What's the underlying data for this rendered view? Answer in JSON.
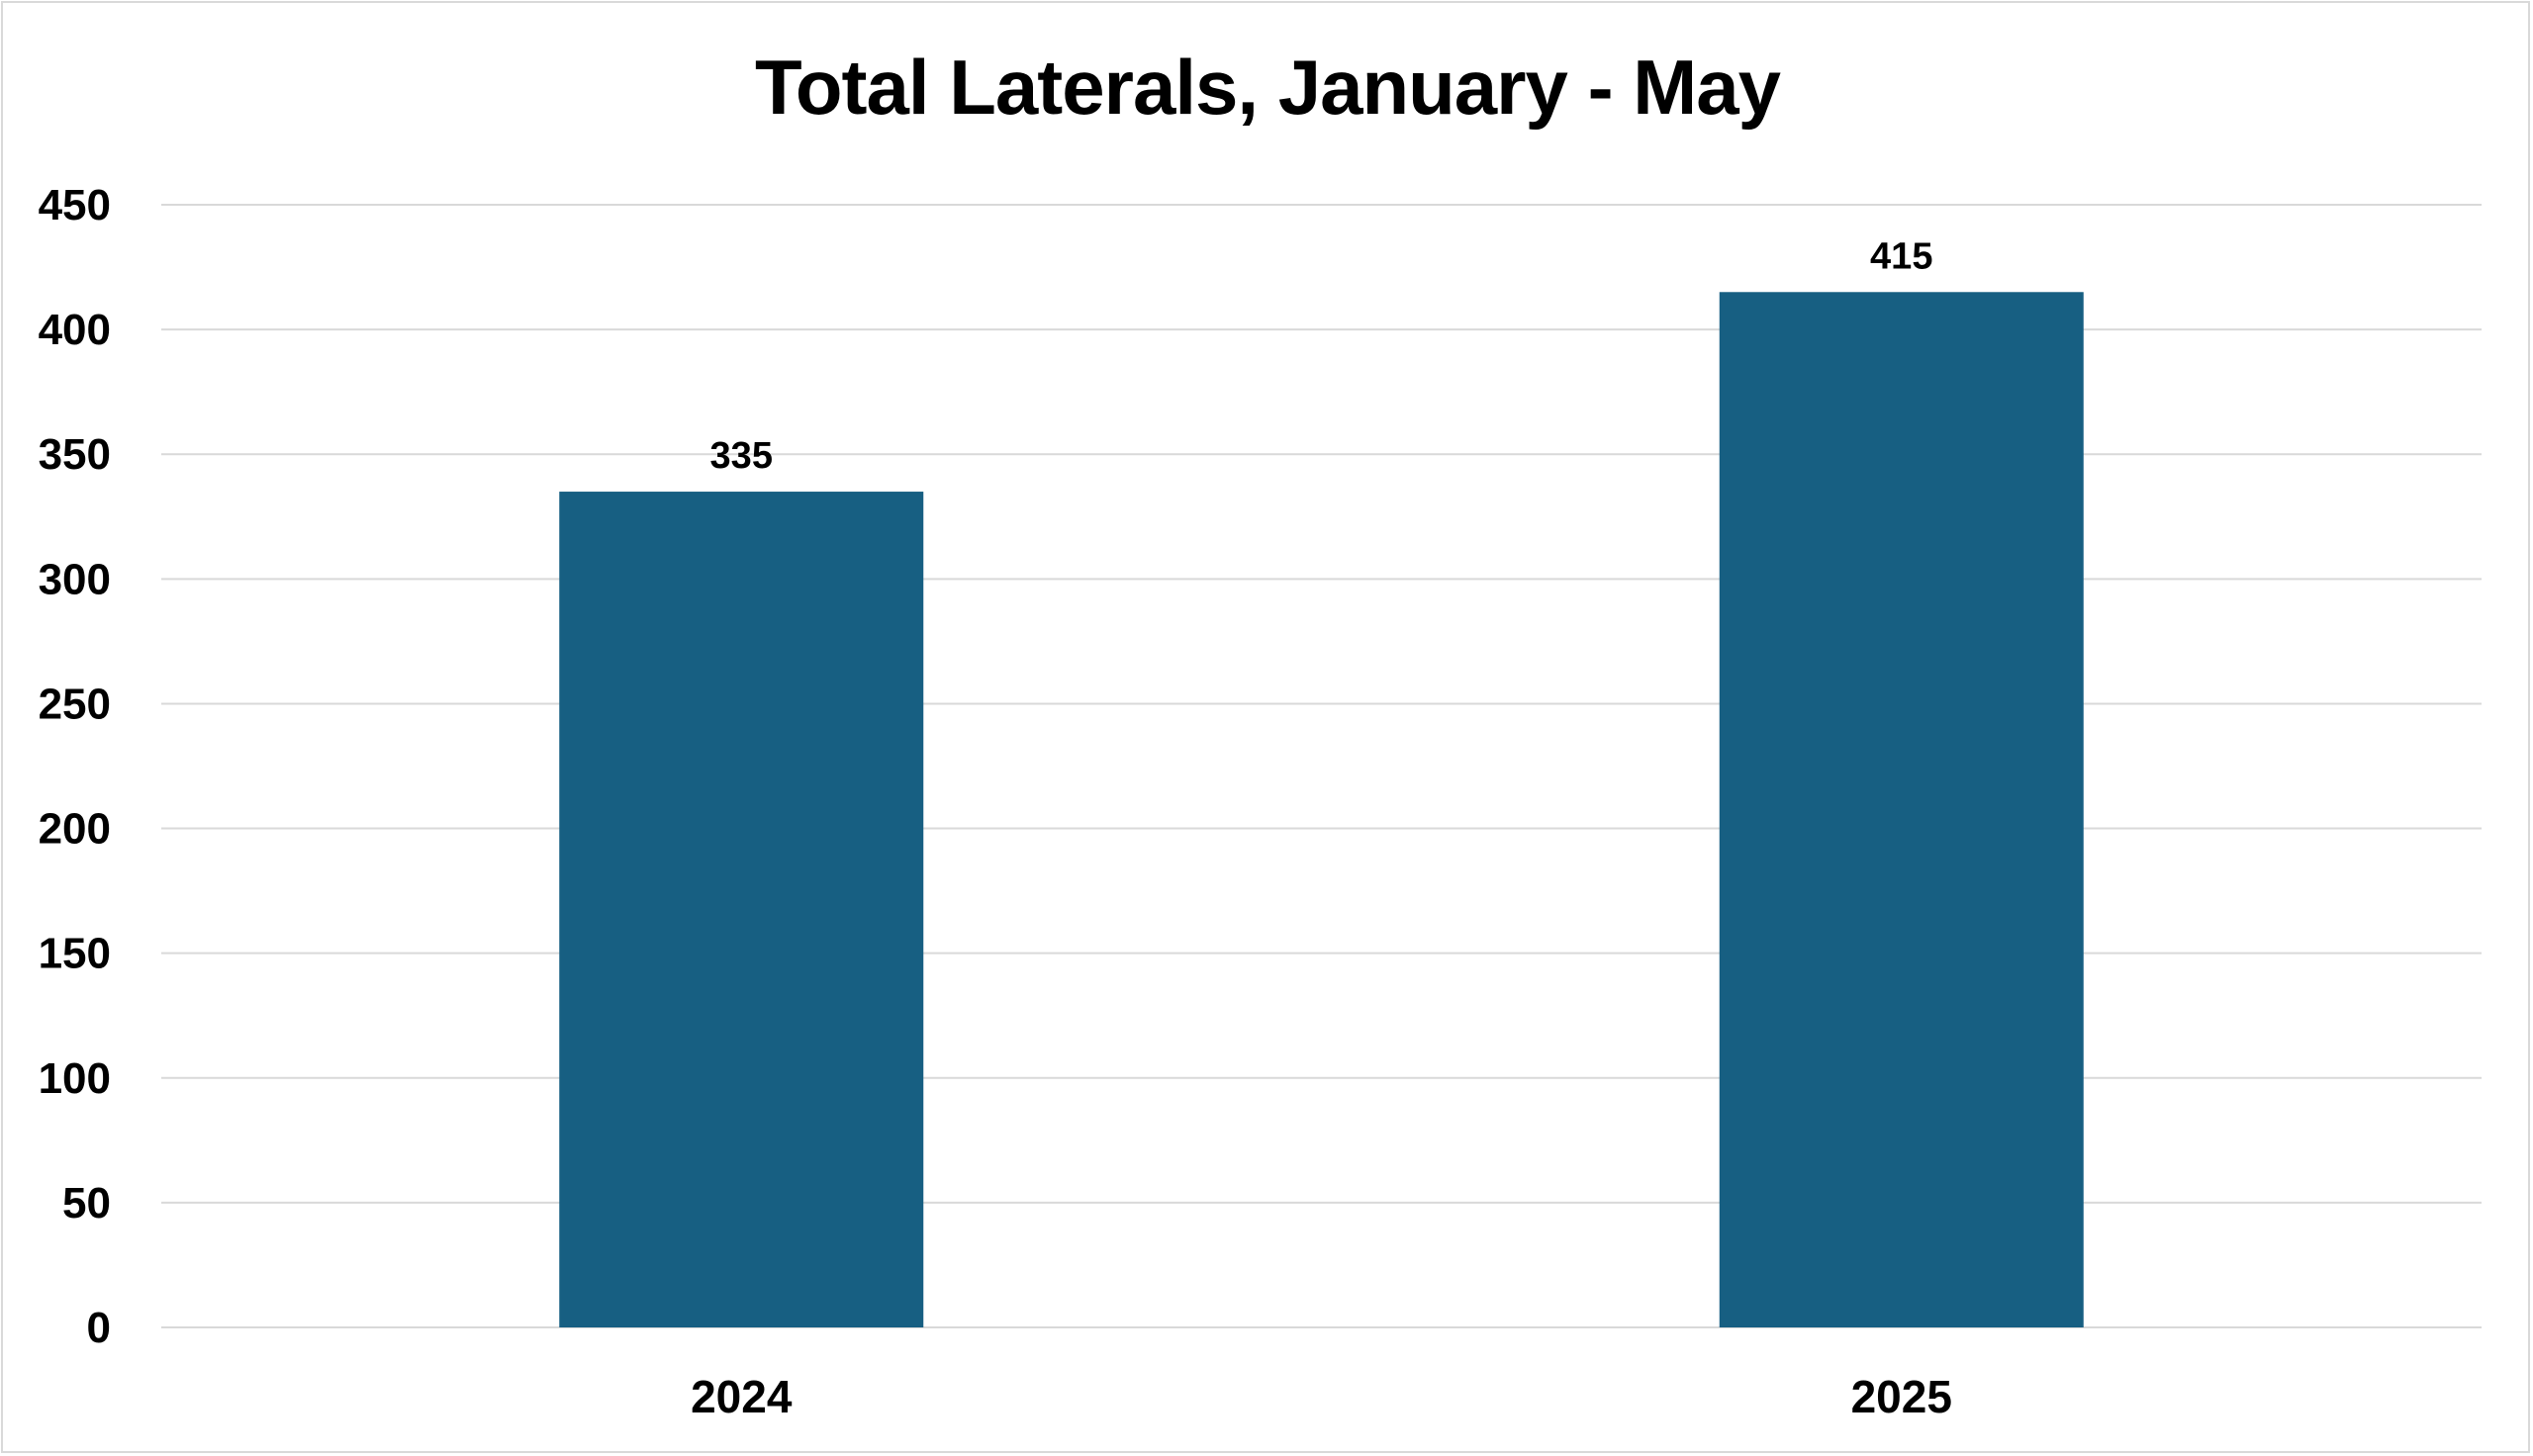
{
  "chart_data": {
    "type": "bar",
    "title": "Total Laterals, January - May",
    "categories": [
      "2024",
      "2025"
    ],
    "values": [
      335,
      415
    ],
    "xlabel": "",
    "ylabel": "",
    "ylim": [
      0,
      450
    ],
    "yticks": [
      "0",
      "50",
      "100",
      "150",
      "200",
      "250",
      "300",
      "350",
      "400",
      "450"
    ],
    "grid": true,
    "legend": "none",
    "bar_color": "#175f82",
    "gridline_color": "#d9d9d9"
  }
}
